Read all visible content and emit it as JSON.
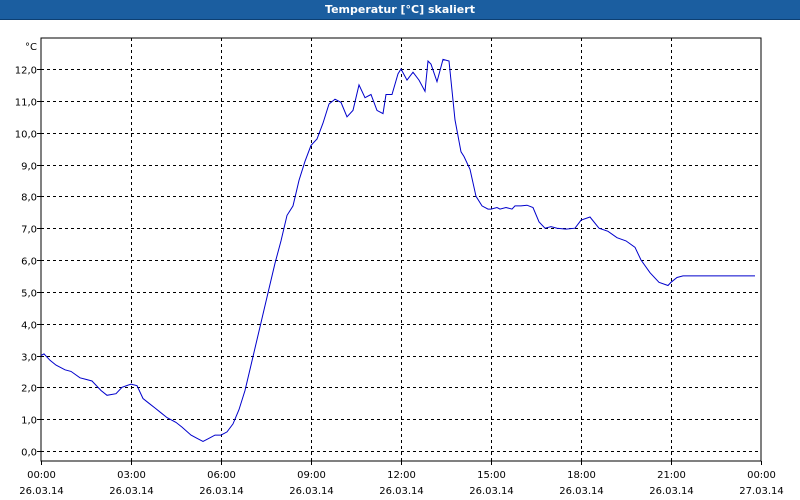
{
  "window": {
    "title": "Temperatur [°C] skaliert"
  },
  "chart_data": {
    "type": "line",
    "title": "Temperatur [°C] skaliert",
    "unit_label": "°C",
    "xlabel": "",
    "ylabel": "",
    "xlim": [
      0,
      24
    ],
    "ylim": [
      0,
      12.5
    ],
    "grid": true,
    "y_ticks": [
      {
        "value": 0,
        "label": "0,0"
      },
      {
        "value": 1,
        "label": "1,0"
      },
      {
        "value": 2,
        "label": "2,0"
      },
      {
        "value": 3,
        "label": "3,0"
      },
      {
        "value": 4,
        "label": "4,0"
      },
      {
        "value": 5,
        "label": "5,0"
      },
      {
        "value": 6,
        "label": "6,0"
      },
      {
        "value": 7,
        "label": "7,0"
      },
      {
        "value": 8,
        "label": "8,0"
      },
      {
        "value": 9,
        "label": "9,0"
      },
      {
        "value": 10,
        "label": "10,0"
      },
      {
        "value": 11,
        "label": "11,0"
      },
      {
        "value": 12,
        "label": "12,0"
      }
    ],
    "x_ticks": [
      {
        "value": 0,
        "time": "00:00",
        "date": "26.03.14"
      },
      {
        "value": 3,
        "time": "03:00",
        "date": "26.03.14"
      },
      {
        "value": 6,
        "time": "06:00",
        "date": "26.03.14"
      },
      {
        "value": 9,
        "time": "09:00",
        "date": "26.03.14"
      },
      {
        "value": 12,
        "time": "12:00",
        "date": "26.03.14"
      },
      {
        "value": 15,
        "time": "15:00",
        "date": "26.03.14"
      },
      {
        "value": 18,
        "time": "18:00",
        "date": "26.03.14"
      },
      {
        "value": 21,
        "time": "21:00",
        "date": "26.03.14"
      },
      {
        "value": 24,
        "time": "00:00",
        "date": "27.03.14"
      }
    ],
    "series": [
      {
        "color": "#0000cc",
        "x": [
          0.0,
          0.1,
          0.3,
          0.5,
          0.8,
          1.0,
          1.3,
          1.5,
          1.7,
          2.0,
          2.2,
          2.5,
          2.7,
          3.0,
          3.2,
          3.4,
          3.6,
          3.8,
          4.0,
          4.2,
          4.3,
          4.5,
          4.7,
          5.0,
          5.2,
          5.4,
          5.6,
          5.8,
          6.0,
          6.2,
          6.4,
          6.6,
          6.8,
          7.0,
          7.2,
          7.4,
          7.6,
          7.8,
          8.0,
          8.2,
          8.4,
          8.6,
          8.8,
          9.0,
          9.2,
          9.4,
          9.6,
          9.8,
          10.0,
          10.2,
          10.4,
          10.6,
          10.8,
          11.0,
          11.2,
          11.4,
          11.5,
          11.7,
          11.9,
          12.0,
          12.2,
          12.4,
          12.6,
          12.8,
          12.9,
          13.0,
          13.2,
          13.4,
          13.6,
          13.8,
          14.0,
          14.1,
          14.3,
          14.5,
          14.7,
          14.9,
          15.0,
          15.2,
          15.3,
          15.5,
          15.7,
          15.8,
          16.0,
          16.2,
          16.4,
          16.6,
          16.8,
          17.0,
          17.2,
          17.5,
          17.8,
          18.0,
          18.3,
          18.6,
          18.9,
          19.2,
          19.5,
          19.8,
          20.0,
          20.3,
          20.6,
          20.9,
          21.0,
          21.2,
          21.4,
          21.6,
          21.8,
          22.0,
          22.3,
          22.6,
          22.9,
          23.1,
          23.2,
          23.4,
          23.6,
          23.8
        ],
        "y": [
          3.0,
          3.05,
          2.85,
          2.7,
          2.55,
          2.5,
          2.3,
          2.25,
          2.2,
          1.9,
          1.75,
          1.8,
          2.0,
          2.1,
          2.05,
          1.65,
          1.5,
          1.35,
          1.2,
          1.05,
          1.0,
          0.9,
          0.75,
          0.5,
          0.4,
          0.3,
          0.4,
          0.5,
          0.5,
          0.6,
          0.85,
          1.3,
          1.9,
          2.7,
          3.5,
          4.3,
          5.1,
          5.9,
          6.6,
          7.4,
          7.7,
          8.5,
          9.1,
          9.6,
          9.8,
          10.3,
          10.9,
          11.05,
          10.95,
          10.5,
          10.7,
          11.5,
          11.1,
          11.2,
          10.7,
          10.6,
          11.2,
          11.2,
          11.85,
          12.0,
          11.65,
          11.9,
          11.65,
          11.3,
          12.25,
          12.15,
          11.6,
          12.3,
          12.25,
          10.4,
          9.4,
          9.25,
          8.85,
          8.0,
          7.7,
          7.6,
          7.6,
          7.65,
          7.6,
          7.65,
          7.6,
          7.7,
          7.7,
          7.72,
          7.65,
          7.2,
          7.0,
          7.05,
          7.0,
          6.97,
          7.0,
          7.25,
          7.35,
          7.0,
          6.9,
          6.7,
          6.6,
          6.4,
          6.0,
          5.6,
          5.3,
          5.2,
          5.3,
          5.45,
          5.5,
          5.5,
          5.5,
          5.5,
          5.5,
          5.5,
          5.5,
          5.5,
          5.5,
          5.5,
          5.5,
          5.5
        ]
      }
    ]
  }
}
